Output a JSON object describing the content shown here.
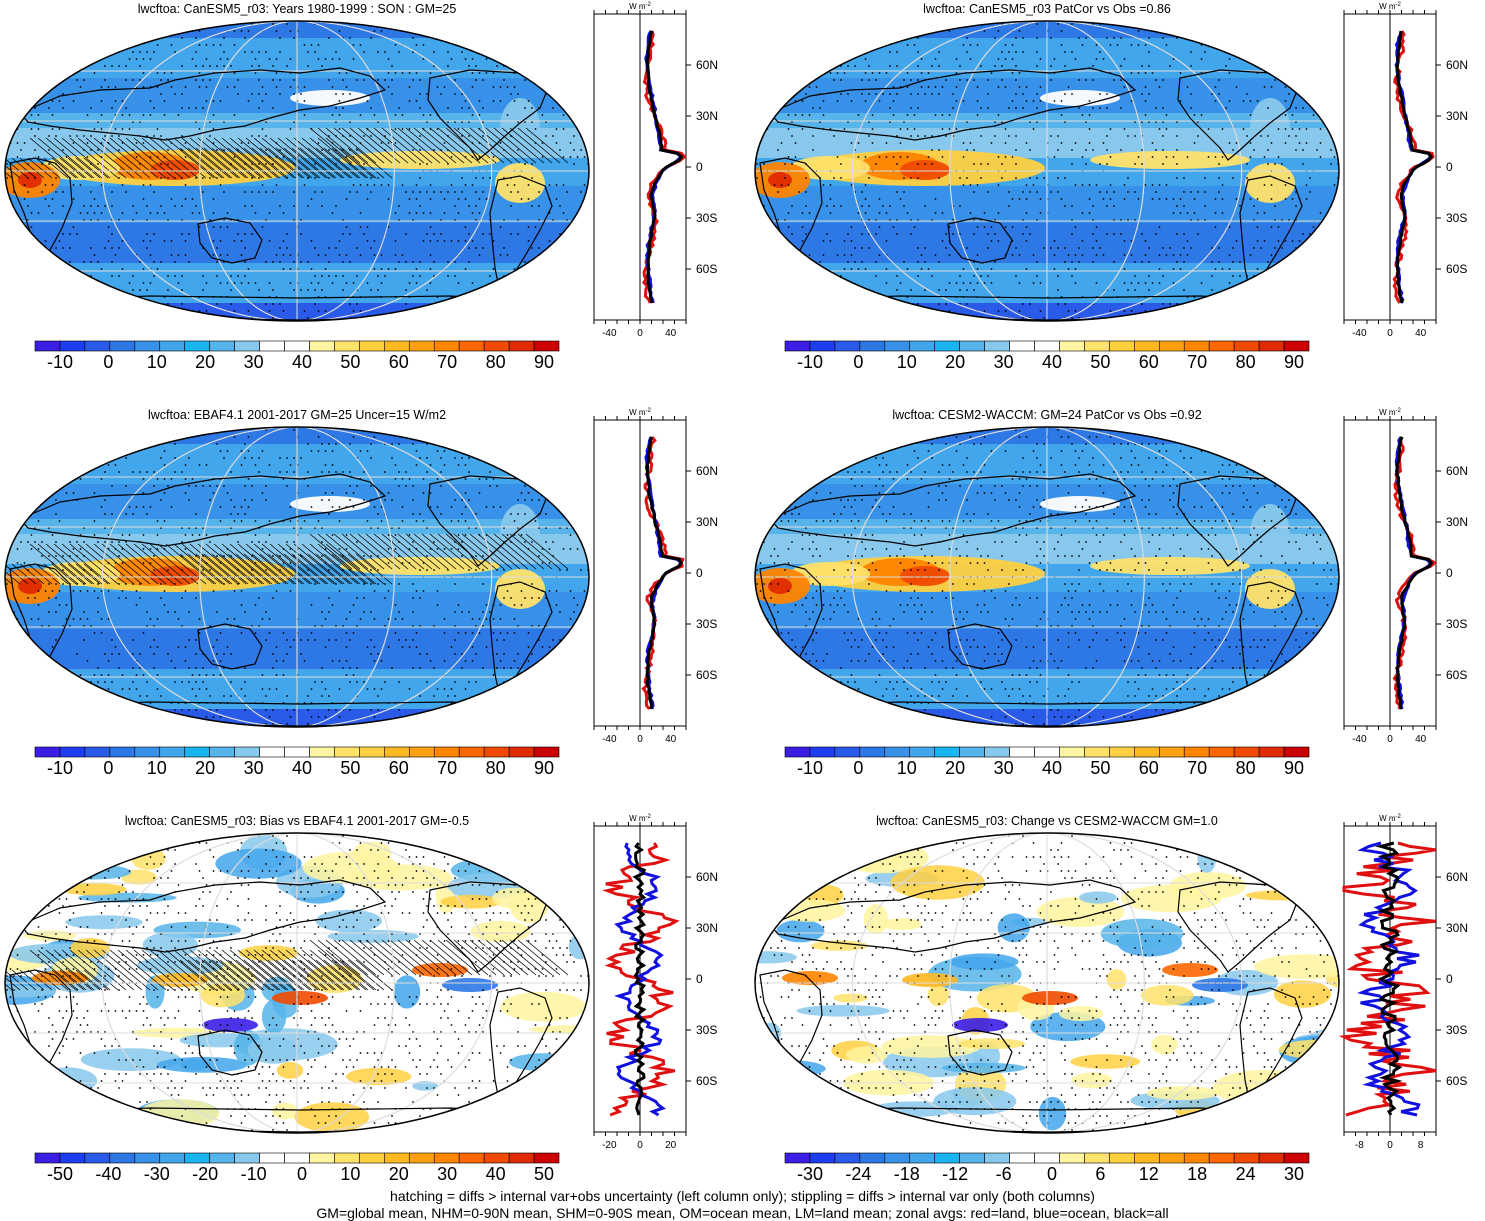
{
  "panels": [
    {
      "id": "p1",
      "title": "lwcftoa: CanESM5_r03: Years 1980-1999 : SON : GM=25",
      "kind": "mean",
      "colorbar": {
        "ticks": [
          "-10",
          "0",
          "10",
          "20",
          "30",
          "40",
          "50",
          "60",
          "70",
          "80",
          "90"
        ]
      },
      "zonal": {
        "unit": "W m",
        "unit_sup": "-2",
        "xticks": [
          "-40",
          "0",
          "40"
        ],
        "xlim": [
          -60,
          60
        ],
        "yticks": [
          "60N",
          "30N",
          "0",
          "30S",
          "60S"
        ]
      },
      "hatched": true
    },
    {
      "id": "p2",
      "title": "lwcftoa: CanESM5_r03 PatCor vs Obs =0.86",
      "kind": "mean",
      "colorbar": {
        "ticks": [
          "-10",
          "0",
          "10",
          "20",
          "30",
          "40",
          "50",
          "60",
          "70",
          "80",
          "90"
        ]
      },
      "zonal": {
        "unit": "W m",
        "unit_sup": "-2",
        "xticks": [
          "-40",
          "0",
          "40"
        ],
        "xlim": [
          -60,
          60
        ],
        "yticks": [
          "60N",
          "30N",
          "0",
          "30S",
          "60S"
        ]
      },
      "hatched": false
    },
    {
      "id": "p3",
      "title": "lwcftoa: EBAF4.1 2001-2017 GM=25 Uncer=15 W/m2",
      "kind": "mean",
      "colorbar": {
        "ticks": [
          "-10",
          "0",
          "10",
          "20",
          "30",
          "40",
          "50",
          "60",
          "70",
          "80",
          "90"
        ]
      },
      "zonal": {
        "unit": "W m",
        "unit_sup": "-2",
        "xticks": [
          "-40",
          "0",
          "40"
        ],
        "xlim": [
          -60,
          60
        ],
        "yticks": [
          "60N",
          "30N",
          "0",
          "30S",
          "60S"
        ]
      },
      "hatched": true
    },
    {
      "id": "p4",
      "title": "lwcftoa: CESM2-WACCM: GM=24 PatCor vs Obs =0.92",
      "kind": "mean",
      "colorbar": {
        "ticks": [
          "-10",
          "0",
          "10",
          "20",
          "30",
          "40",
          "50",
          "60",
          "70",
          "80",
          "90"
        ]
      },
      "zonal": {
        "unit": "W m",
        "unit_sup": "-2",
        "xticks": [
          "-40",
          "0",
          "40"
        ],
        "xlim": [
          -60,
          60
        ],
        "yticks": [
          "60N",
          "30N",
          "0",
          "30S",
          "60S"
        ]
      },
      "hatched": false
    },
    {
      "id": "p5",
      "title": "lwcftoa: CanESM5_r03: Bias vs EBAF4.1 2001-2017  GM=-0.5",
      "kind": "diff",
      "colorbar": {
        "ticks": [
          "-50",
          "-40",
          "-30",
          "-20",
          "-10",
          "0",
          "10",
          "20",
          "30",
          "40",
          "50"
        ]
      },
      "zonal": {
        "unit": "W m",
        "unit_sup": "-2",
        "xticks": [
          "-20",
          "0",
          "20"
        ],
        "xlim": [
          -20,
          20
        ],
        "yticks": [
          "60N",
          "30N",
          "0",
          "30S",
          "60S"
        ]
      },
      "hatched": true
    },
    {
      "id": "p6",
      "title": "lwcftoa: CanESM5_r03: Change vs CESM2-WACCM GM=1.0",
      "kind": "diff",
      "colorbar": {
        "ticks": [
          "-30",
          "-24",
          "-18",
          "-12",
          "-6",
          "0",
          "6",
          "12",
          "18",
          "24",
          "30"
        ]
      },
      "zonal": {
        "unit": "W m",
        "unit_sup": "-2",
        "xticks": [
          "-8",
          "0",
          "8"
        ],
        "xlim": [
          -10,
          10
        ],
        "yticks": [
          "60N",
          "30N",
          "0",
          "30S",
          "60S"
        ]
      },
      "hatched": false
    }
  ],
  "colors": {
    "mean_scale": [
      "#3a1ee6",
      "#1e3cf0",
      "#2a5ae8",
      "#2e78e6",
      "#3891e8",
      "#42a6ec",
      "#1ab4ee",
      "#56b4ea",
      "#88c8ec",
      "#ffffff",
      "#ffffff",
      "#fff4a0",
      "#ffe26a",
      "#ffd040",
      "#ffb820",
      "#ffa010",
      "#ff8400",
      "#ff6600",
      "#f04a00",
      "#e02a00",
      "#cc0000"
    ],
    "diff_scale": [
      "#3a1ee6",
      "#1e3cf0",
      "#2a5ae8",
      "#2e78e6",
      "#3891e8",
      "#42a6ec",
      "#1ab4ee",
      "#56b4ea",
      "#88c8ec",
      "#ffffff",
      "#ffffff",
      "#fff4a0",
      "#ffe26a",
      "#ffd040",
      "#ffb820",
      "#ffa010",
      "#ff8400",
      "#ff6600",
      "#f04a00",
      "#e02a00",
      "#cc0000"
    ],
    "land": "#e01010",
    "ocean": "#1010e0",
    "all": "#000000"
  },
  "footer": {
    "line1": "hatching = diffs > internal var+obs uncertainty (left column only); stippling = diffs > internal var only (both columns)",
    "line2": "GM=global mean, NHM=0-90N mean, SHM=0-90S mean, OM=ocean mean, LM=land mean; zonal avgs: red=land, blue=ocean, black=all"
  }
}
